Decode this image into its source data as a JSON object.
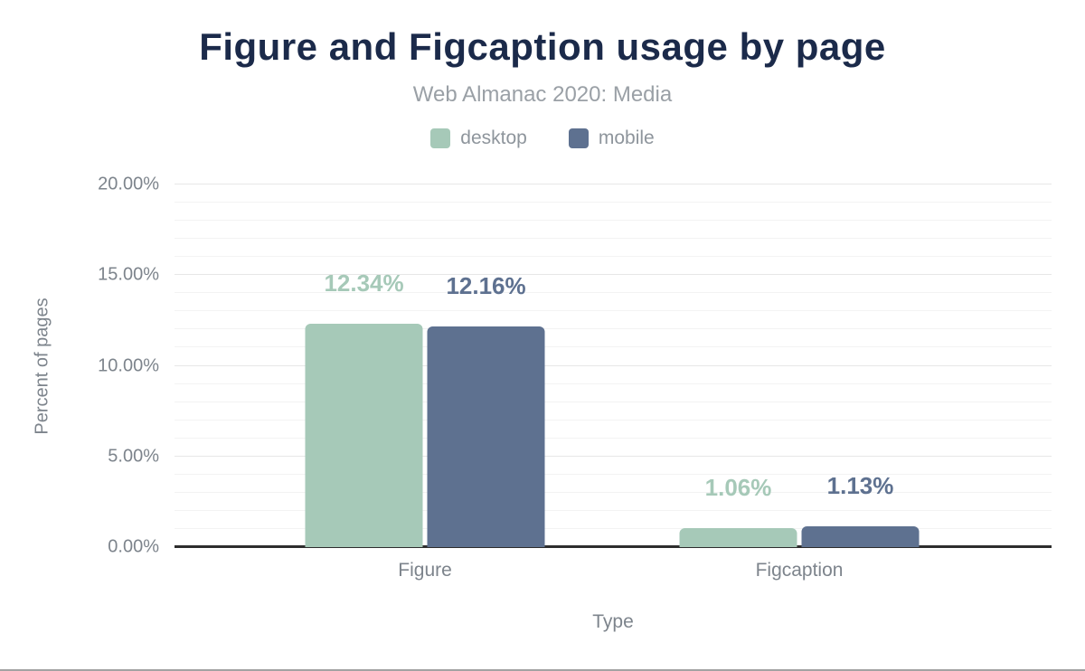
{
  "title": "Figure and Figcaption usage by page",
  "subtitle": "Web Almanac 2020: Media",
  "legend": {
    "items": [
      {
        "label": "desktop",
        "color": "#a6c9b8"
      },
      {
        "label": "mobile",
        "color": "#5e7190"
      }
    ]
  },
  "chart_data": {
    "type": "bar",
    "title": "Figure and Figcaption usage by page",
    "subtitle": "Web Almanac 2020: Media",
    "categories": [
      "Figure",
      "Figcaption"
    ],
    "series": [
      {
        "name": "desktop",
        "color": "#a6c9b8",
        "values": [
          12.34,
          1.06
        ],
        "value_labels": [
          "12.34%",
          "1.06%"
        ]
      },
      {
        "name": "mobile",
        "color": "#5e7190",
        "values": [
          12.16,
          1.13
        ],
        "value_labels": [
          "12.16%",
          "1.13%"
        ]
      }
    ],
    "xlabel": "Type",
    "ylabel": "Percent of pages",
    "ylim": [
      0,
      20
    ],
    "yticks": [
      {
        "value": 0,
        "label": "0.00%"
      },
      {
        "value": 5,
        "label": "5.00%"
      },
      {
        "value": 10,
        "label": "10.00%"
      },
      {
        "value": 15,
        "label": "15.00%"
      },
      {
        "value": 20,
        "label": "20.00%"
      }
    ],
    "grid": {
      "orientation": "horizontal",
      "minor_step": 1,
      "major_step": 5
    },
    "legend_position": "top"
  },
  "colors": {
    "title": "#1b2a4a",
    "subtitle": "#9aa0a6",
    "axis_text": "#7d848c",
    "axis_line": "#2d2d2d",
    "gridline_major": "#e7e7e7",
    "gridline_minor": "#f3f3f3"
  }
}
